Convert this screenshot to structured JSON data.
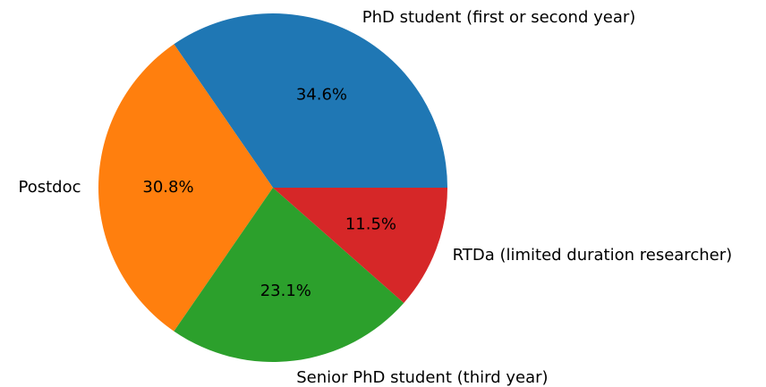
{
  "chart_data": {
    "type": "pie",
    "categories": [
      "PhD student (first or second year)",
      "Postdoc",
      "Senior PhD student (third year)",
      "RTDa (limited duration researcher)"
    ],
    "values": [
      34.6,
      30.8,
      23.1,
      11.5
    ],
    "value_labels": [
      "34.6%",
      "30.8%",
      "23.1%",
      "11.5%"
    ],
    "colors": [
      "#1f77b4",
      "#ff7f0e",
      "#2ca02c",
      "#d62728"
    ]
  }
}
